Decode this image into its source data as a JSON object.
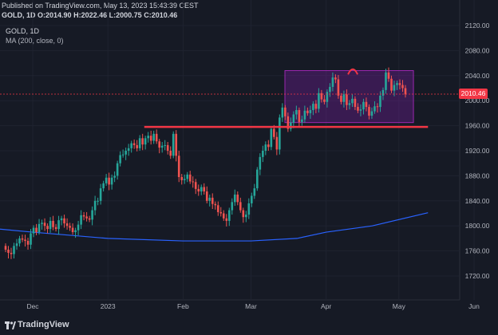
{
  "header": {
    "published": "Published on TradingView.com, May 13, 2023 15:43:39 CEST",
    "symbol": "GOLD, 1D",
    "o_label": "O:",
    "o_val": "2014.90",
    "h_label": "H:",
    "h_val": "2022.46",
    "l_label": "L:",
    "l_val": "2000.75",
    "c_label": "C:",
    "c_val": "2010.46"
  },
  "legend": {
    "symbol": "GOLD, 1D",
    "indicator": "MA (200, close, 0)"
  },
  "footer": {
    "brand": "TradingView"
  },
  "colors": {
    "up": "#26a69a",
    "down": "#ef5350",
    "ma": "#2962ff",
    "support_line": "#f23645",
    "range_box": "#7b1fa2",
    "last_price_tag": "#f23645"
  },
  "chart_data": {
    "type": "candlestick",
    "symbol": "GOLD",
    "timeframe": "1D",
    "y_ticks": [
      "2120.00",
      "2080.00",
      "2040.00",
      "2000.00",
      "1960.00",
      "1920.00",
      "1880.00",
      "1840.00",
      "1800.00",
      "1760.00",
      "1720.00"
    ],
    "y_tick_values": [
      2120,
      2080,
      2040,
      2000,
      1960,
      1920,
      1880,
      1840,
      1800,
      1760,
      1720
    ],
    "ylim": [
      1705,
      2132
    ],
    "x_ticks": [
      "Dec",
      "2023",
      "Feb",
      "Mar",
      "Apr",
      "May",
      "Jun"
    ],
    "x_tick_dates": [
      "2022-12-01",
      "2023-01-01",
      "2023-02-01",
      "2023-03-01",
      "2023-04-01",
      "2023-05-01",
      "2023-06-01"
    ],
    "xlim": [
      "2022-11-03",
      "2023-06-13"
    ],
    "last_price": 2010.46,
    "last_price_label": "2010.46",
    "support_level": 1958,
    "support_range": [
      "2023-01-16",
      "2023-05-13"
    ],
    "range_box": {
      "from": "2023-03-15",
      "to": "2023-05-07",
      "low": 1965,
      "high": 2048
    },
    "annotation": "arch marker above swing high near 2047 (mid-April)",
    "candles_close": [
      1762,
      1757,
      1755,
      1768,
      1772,
      1780,
      1778,
      1776,
      1770,
      1788,
      1797,
      1790,
      1803,
      1805,
      1800,
      1795,
      1808,
      1798,
      1795,
      1809,
      1812,
      1804,
      1800,
      1797,
      1790,
      1793,
      1802,
      1817,
      1815,
      1812,
      1810,
      1825,
      1840,
      1840,
      1860,
      1868,
      1877,
      1866,
      1877,
      1880,
      1900,
      1913,
      1914,
      1920,
      1924,
      1932,
      1929,
      1924,
      1940,
      1930,
      1940,
      1944,
      1936,
      1947,
      1935,
      1925,
      1928,
      1929,
      1920,
      1912,
      1947,
      1912,
      1878,
      1873,
      1875,
      1882,
      1871,
      1870,
      1859,
      1855,
      1862,
      1855,
      1840,
      1845,
      1835,
      1833,
      1822,
      1820,
      1812,
      1808,
      1825,
      1838,
      1850,
      1838,
      1825,
      1814,
      1818,
      1836,
      1848,
      1860,
      1890,
      1910,
      1920,
      1930,
      1926,
      1955,
      1942,
      1922,
      1973,
      1989,
      1975,
      1955,
      1965,
      1978,
      1985,
      1966,
      1970,
      1984,
      1980,
      1985,
      1995,
      1987,
      2012,
      2002,
      1998,
      2014,
      2022,
      2037,
      2034,
      2008,
      1998,
      2010,
      1993,
      1996,
      2003,
      1990,
      1984,
      1986,
      1998,
      1990,
      1976,
      1983,
      1991,
      1990,
      2008,
      2017,
      2045,
      2035,
      2016,
      2025,
      2028,
      2025,
      2020,
      2010
    ],
    "ma200": [
      {
        "date": "2022-11-03",
        "value": 1800
      },
      {
        "date": "2022-12-01",
        "value": 1790
      },
      {
        "date": "2023-01-01",
        "value": 1780
      },
      {
        "date": "2023-02-01",
        "value": 1776
      },
      {
        "date": "2023-03-01",
        "value": 1776
      },
      {
        "date": "2023-03-20",
        "value": 1780
      },
      {
        "date": "2023-04-01",
        "value": 1790
      },
      {
        "date": "2023-04-20",
        "value": 1800
      },
      {
        "date": "2023-05-13",
        "value": 1821
      }
    ]
  }
}
